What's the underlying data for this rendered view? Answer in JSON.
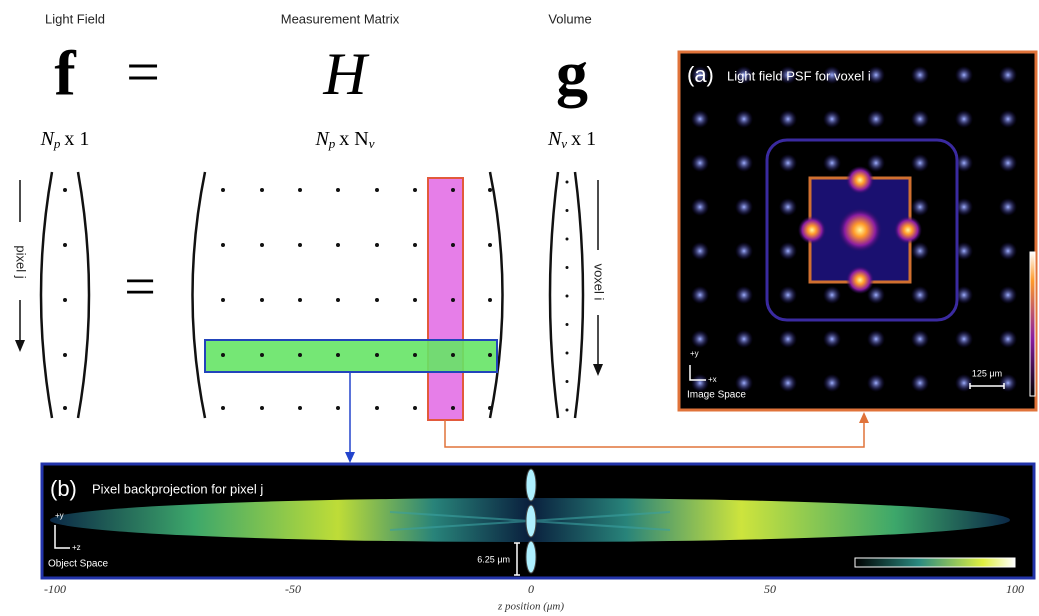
{
  "header": {
    "light_field": "Light Field",
    "measurement_matrix": "Measurement Matrix",
    "volume": "Volume"
  },
  "equation": {
    "f": "f",
    "equals": "=",
    "H": "H",
    "g": "g"
  },
  "dims": {
    "f": {
      "symbol": "N",
      "sub": "p",
      "rest": "x 1"
    },
    "H": {
      "symbol": "N",
      "sub": "p",
      "mid": "x N",
      "sub2": "v"
    },
    "g": {
      "symbol": "N",
      "sub": "v",
      "rest": "x 1"
    }
  },
  "vectors": {
    "pixel_label": "pixel j",
    "voxel_label": "voxel i",
    "equals": "="
  },
  "panel_a": {
    "label": "(a)",
    "title": "Light field PSF for voxel i",
    "axis_y": "+y",
    "axis_x": "+x",
    "space": "Image Space",
    "scale": "125 μm"
  },
  "panel_b": {
    "label": "(b)",
    "title": "Pixel backprojection for pixel j",
    "axis_y": "+y",
    "axis_x": "+z",
    "space": "Object Space",
    "scale": "6.25 μm",
    "axis_ticks": [
      -100,
      -50,
      0,
      50,
      100
    ],
    "axis_label": "z position (μm)"
  }
}
